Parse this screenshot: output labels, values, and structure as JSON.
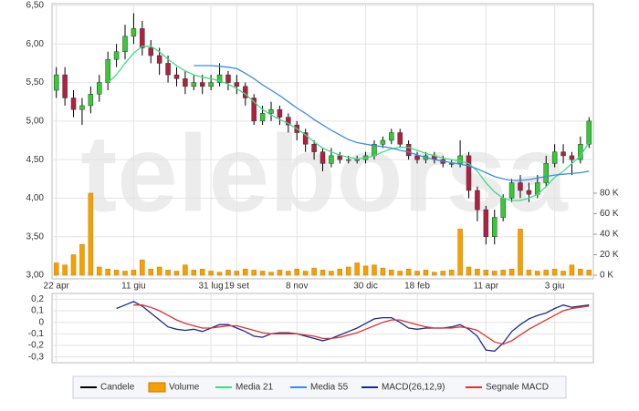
{
  "chart_data": [
    {
      "type": "candlestick",
      "watermark": "teleborsa",
      "x": [
        "22 apr",
        null,
        null,
        null,
        null,
        null,
        null,
        null,
        null,
        "11 giu",
        null,
        null,
        null,
        null,
        null,
        null,
        null,
        null,
        "31 lug",
        null,
        null,
        "19 set",
        null,
        null,
        null,
        null,
        null,
        null,
        "8 nov",
        null,
        null,
        null,
        null,
        null,
        null,
        null,
        "30 dic",
        null,
        null,
        null,
        null,
        null,
        "18 feb",
        null,
        null,
        null,
        null,
        null,
        null,
        null,
        "11 apr",
        null,
        null,
        null,
        null,
        null,
        null,
        null,
        "3 giu",
        null,
        null,
        null,
        null
      ],
      "series": [
        {
          "name": "Candele",
          "color": "#000000",
          "up_color": "#33cc33",
          "down_color": "#b3203f",
          "open": [
            5.4,
            5.6,
            5.3,
            5.15,
            5.2,
            5.35,
            5.5,
            5.8,
            5.9,
            6.1,
            6.2,
            5.95,
            5.85,
            5.75,
            5.6,
            5.55,
            5.45,
            5.5,
            5.45,
            5.5,
            5.6,
            5.5,
            5.45,
            5.3,
            5.0,
            5.1,
            5.15,
            5.05,
            4.95,
            4.85,
            4.7,
            4.6,
            4.45,
            4.55,
            4.5,
            4.5,
            4.5,
            4.55,
            4.7,
            4.75,
            4.85,
            4.7,
            4.55,
            4.5,
            4.55,
            4.5,
            4.45,
            4.45,
            4.55,
            4.1,
            3.85,
            3.5,
            3.75,
            4.0,
            4.2,
            4.1,
            4.05,
            4.2,
            4.45,
            4.6,
            4.55,
            4.5,
            4.7
          ],
          "high": [
            5.7,
            5.7,
            5.4,
            5.3,
            5.45,
            5.6,
            5.9,
            6.0,
            6.25,
            6.4,
            6.3,
            6.05,
            5.95,
            5.85,
            5.7,
            5.65,
            5.6,
            5.6,
            5.6,
            5.75,
            5.65,
            5.6,
            5.5,
            5.35,
            5.2,
            5.25,
            5.2,
            5.1,
            5.0,
            4.9,
            4.75,
            4.65,
            4.65,
            4.6,
            4.55,
            4.55,
            4.6,
            4.75,
            4.8,
            4.9,
            4.9,
            4.75,
            4.6,
            4.6,
            4.6,
            4.55,
            4.5,
            4.75,
            4.6,
            4.15,
            3.9,
            3.85,
            4.05,
            4.25,
            4.3,
            4.2,
            4.3,
            4.55,
            4.7,
            4.7,
            4.6,
            4.8,
            5.05
          ],
          "low": [
            5.3,
            5.2,
            5.05,
            4.95,
            5.1,
            5.25,
            5.4,
            5.7,
            5.8,
            6.0,
            5.85,
            5.75,
            5.6,
            5.5,
            5.45,
            5.35,
            5.4,
            5.35,
            5.4,
            5.45,
            5.4,
            5.35,
            5.2,
            4.95,
            4.95,
            5.0,
            4.95,
            4.85,
            4.75,
            4.6,
            4.5,
            4.35,
            4.4,
            4.45,
            4.45,
            4.45,
            4.45,
            4.5,
            4.65,
            4.7,
            4.65,
            4.5,
            4.45,
            4.45,
            4.45,
            4.4,
            4.4,
            4.4,
            4.0,
            3.7,
            3.4,
            3.4,
            3.7,
            3.95,
            4.0,
            3.95,
            4.0,
            4.15,
            4.4,
            4.45,
            4.3,
            4.45,
            4.65
          ],
          "close": [
            5.6,
            5.3,
            5.15,
            5.2,
            5.35,
            5.5,
            5.8,
            5.9,
            6.1,
            6.2,
            5.95,
            5.85,
            5.75,
            5.6,
            5.55,
            5.45,
            5.5,
            5.45,
            5.5,
            5.6,
            5.5,
            5.45,
            5.3,
            5.0,
            5.1,
            5.15,
            5.05,
            4.95,
            4.85,
            4.7,
            4.6,
            4.45,
            4.55,
            4.5,
            4.5,
            4.5,
            4.55,
            4.7,
            4.75,
            4.85,
            4.7,
            4.55,
            4.5,
            4.55,
            4.5,
            4.45,
            4.45,
            4.55,
            4.1,
            3.85,
            3.5,
            3.75,
            4.0,
            4.2,
            4.1,
            4.05,
            4.2,
            4.45,
            4.6,
            4.55,
            4.5,
            4.7,
            5.0
          ]
        },
        {
          "name": "Volume",
          "color": "#f5a000",
          "axis": "y2",
          "values": [
            12000,
            10000,
            20000,
            30000,
            80000,
            8000,
            6000,
            5000,
            4000,
            5000,
            15000,
            6000,
            8000,
            5000,
            4000,
            10000,
            5000,
            6000,
            4000,
            3000,
            5000,
            4000,
            6000,
            5000,
            4000,
            3000,
            5000,
            4000,
            6000,
            4000,
            7000,
            5000,
            4000,
            6000,
            8000,
            12000,
            9000,
            10000,
            7000,
            5000,
            4000,
            6000,
            4000,
            5000,
            3000,
            4000,
            5000,
            45000,
            8000,
            6000,
            5000,
            4000,
            5000,
            6000,
            45000,
            5000,
            4000,
            5000,
            6000,
            4000,
            10000,
            6000,
            5000
          ]
        },
        {
          "name": "Media 21",
          "color": "#3ddc84",
          "values": [
            null,
            null,
            null,
            null,
            null,
            null,
            5.5,
            5.6,
            5.75,
            5.88,
            5.97,
            5.97,
            5.9,
            5.8,
            5.72,
            5.65,
            5.6,
            5.57,
            5.55,
            5.52,
            5.48,
            5.42,
            5.35,
            5.25,
            5.15,
            5.08,
            5.02,
            4.97,
            4.9,
            4.82,
            4.73,
            4.65,
            4.6,
            4.56,
            4.53,
            4.51,
            4.52,
            4.55,
            4.6,
            4.64,
            4.66,
            4.66,
            4.62,
            4.58,
            4.55,
            4.52,
            4.5,
            4.48,
            4.45,
            4.35,
            4.2,
            4.08,
            4.0,
            3.97,
            3.97,
            4.0,
            4.05,
            4.15,
            4.27,
            4.35,
            4.45,
            4.55,
            4.72
          ]
        },
        {
          "name": "Media 55",
          "color": "#3a8ee6",
          "values": [
            null,
            null,
            null,
            null,
            null,
            null,
            null,
            null,
            null,
            null,
            null,
            null,
            null,
            null,
            null,
            null,
            5.72,
            5.72,
            5.72,
            5.71,
            5.7,
            5.68,
            5.62,
            5.55,
            5.47,
            5.4,
            5.33,
            5.25,
            5.17,
            5.1,
            5.02,
            4.95,
            4.88,
            4.82,
            4.76,
            4.72,
            4.7,
            4.68,
            4.67,
            4.65,
            4.62,
            4.6,
            4.56,
            4.53,
            4.5,
            4.48,
            4.46,
            4.44,
            4.42,
            4.38,
            4.33,
            4.28,
            4.25,
            4.23,
            4.23,
            4.24,
            4.26,
            4.28,
            4.3,
            4.31,
            4.32,
            4.33,
            4.35
          ]
        }
      ],
      "ylim": [
        3,
        6.5
      ],
      "yticks": [
        {
          "value": 3,
          "label": "3,00"
        },
        {
          "value": 3.5,
          "label": "3,50"
        },
        {
          "value": 4,
          "label": "4,00"
        },
        {
          "value": 4.5,
          "label": "4,50"
        },
        {
          "value": 5,
          "label": "5,00"
        },
        {
          "value": 5.5,
          "label": "5,50"
        },
        {
          "value": 6,
          "label": "6,00"
        },
        {
          "value": 6.5,
          "label": "6,50"
        }
      ],
      "y2lim": [
        0,
        263000
      ],
      "y2ticks": [
        {
          "value": 0,
          "label": "0 K"
        },
        {
          "value": 20000,
          "label": "20 K"
        },
        {
          "value": 40000,
          "label": "40 K"
        },
        {
          "value": 60000,
          "label": "60 K"
        },
        {
          "value": 80000,
          "label": "80 K"
        }
      ],
      "grid": true
    },
    {
      "type": "line",
      "series": [
        {
          "name": "MACD(26,12,9)",
          "color": "#1c2a8c",
          "values": [
            null,
            null,
            null,
            null,
            null,
            null,
            null,
            0.12,
            0.15,
            0.18,
            0.14,
            0.08,
            0.02,
            -0.04,
            -0.06,
            -0.07,
            -0.06,
            -0.08,
            -0.05,
            -0.02,
            -0.02,
            -0.05,
            -0.08,
            -0.12,
            -0.13,
            -0.1,
            -0.09,
            -0.09,
            -0.1,
            -0.12,
            -0.14,
            -0.16,
            -0.14,
            -0.11,
            -0.08,
            -0.05,
            -0.01,
            0.03,
            0.04,
            0.04,
            0.0,
            -0.05,
            -0.06,
            -0.05,
            -0.05,
            -0.05,
            -0.04,
            -0.02,
            -0.06,
            -0.12,
            -0.24,
            -0.25,
            -0.18,
            -0.08,
            -0.02,
            0.03,
            0.06,
            0.08,
            0.12,
            0.15,
            0.13,
            0.14,
            0.15
          ]
        },
        {
          "name": "Segnale MACD",
          "color": "#e03030",
          "values": [
            null,
            null,
            null,
            null,
            null,
            null,
            null,
            null,
            null,
            0.15,
            0.15,
            0.13,
            0.1,
            0.06,
            0.02,
            -0.01,
            -0.03,
            -0.05,
            -0.05,
            -0.04,
            -0.03,
            -0.03,
            -0.05,
            -0.07,
            -0.09,
            -0.1,
            -0.1,
            -0.1,
            -0.1,
            -0.11,
            -0.12,
            -0.14,
            -0.14,
            -0.13,
            -0.11,
            -0.09,
            -0.06,
            -0.03,
            0.0,
            0.02,
            0.02,
            0.0,
            -0.02,
            -0.04,
            -0.05,
            -0.05,
            -0.05,
            -0.04,
            -0.05,
            -0.07,
            -0.12,
            -0.17,
            -0.19,
            -0.16,
            -0.11,
            -0.06,
            -0.02,
            0.02,
            0.06,
            0.1,
            0.12,
            0.13,
            0.14
          ]
        }
      ],
      "ylim": [
        -0.35,
        0.25
      ],
      "yticks": [
        {
          "value": 0.2,
          "label": "0,2"
        },
        {
          "value": 0.1,
          "label": "0,1"
        },
        0,
        {
          "value": -0.1,
          "label": "-0,1"
        },
        {
          "value": -0.2,
          "label": "-0,2"
        },
        {
          "value": -0.3,
          "label": "-0,3"
        }
      ],
      "grid": true
    }
  ]
}
